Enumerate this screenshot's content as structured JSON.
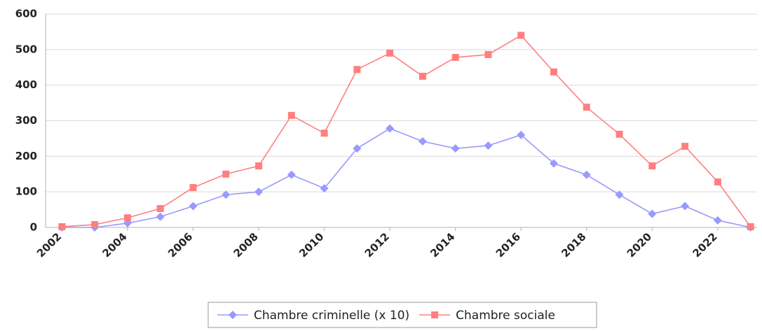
{
  "chart_data": {
    "type": "line",
    "x": [
      2002,
      2003,
      2004,
      2005,
      2006,
      2007,
      2008,
      2009,
      2010,
      2011,
      2012,
      2013,
      2014,
      2015,
      2016,
      2017,
      2018,
      2019,
      2020,
      2021,
      2022,
      2023
    ],
    "series": [
      {
        "name": "Chambre criminelle (x 10)",
        "color": "#9999ff",
        "marker": "diamond",
        "values": [
          0,
          0,
          12,
          30,
          60,
          92,
          100,
          148,
          110,
          222,
          278,
          242,
          222,
          230,
          260,
          180,
          148,
          92,
          38,
          60,
          20,
          0
        ]
      },
      {
        "name": "Chambre sociale",
        "color": "#ff7f7f",
        "marker": "square",
        "values": [
          2,
          8,
          27,
          53,
          112,
          150,
          173,
          315,
          265,
          444,
          490,
          425,
          478,
          486,
          540,
          437,
          338,
          262,
          173,
          228,
          128,
          2
        ]
      }
    ],
    "xlim": [
      2001.5,
      2023.2
    ],
    "xticks": [
      2002,
      2004,
      2006,
      2008,
      2010,
      2012,
      2014,
      2016,
      2018,
      2020,
      2022
    ],
    "ylim": [
      0,
      600
    ],
    "yticks": [
      0,
      100,
      200,
      300,
      400,
      500,
      600
    ],
    "grid": true,
    "legend": "bottom"
  }
}
